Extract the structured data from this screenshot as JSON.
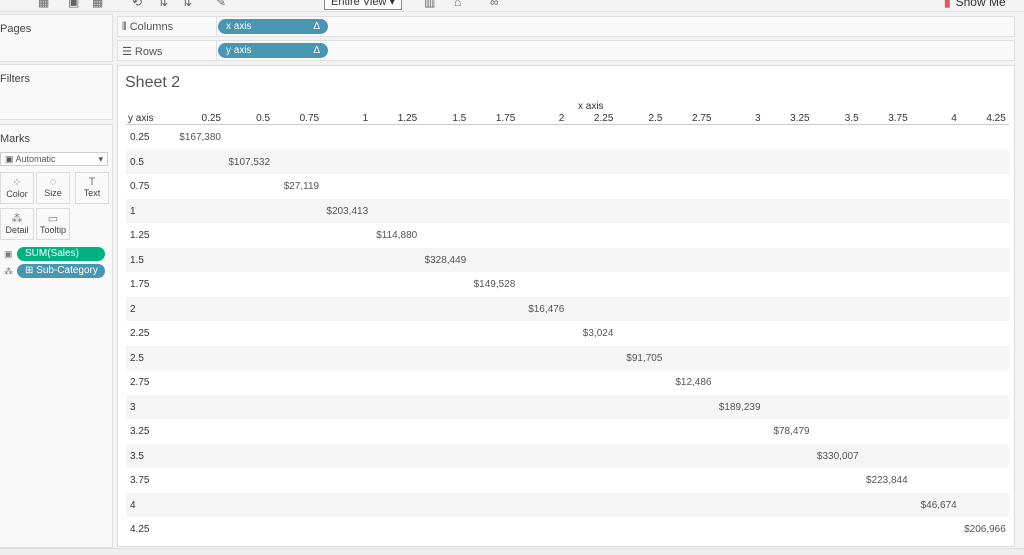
{
  "toolbar": {
    "view_select": "Entire View",
    "show_me": "Show Me"
  },
  "panels": {
    "pages": "Pages",
    "filters": "Filters",
    "marks": "Marks"
  },
  "marks": {
    "type": "Automatic",
    "buttons": [
      {
        "label": "Color",
        "icon": "color-icon"
      },
      {
        "label": "Size",
        "icon": "size-icon"
      },
      {
        "label": "Text",
        "icon": "text-icon"
      },
      {
        "label": "Detail",
        "icon": "detail-icon"
      },
      {
        "label": "Tooltip",
        "icon": "tooltip-icon"
      }
    ],
    "fields": [
      {
        "label": "SUM(Sales)",
        "color": "#00b180"
      },
      {
        "label": "⊞ Sub-Category",
        "color": "#4996b2"
      }
    ]
  },
  "shelves": {
    "columns": {
      "label": "Columns",
      "pill": "x axis",
      "delta": "Δ"
    },
    "rows": {
      "label": "Rows",
      "pill": "y axis",
      "delta": "Δ"
    }
  },
  "sheet": {
    "title": "Sheet 2",
    "x_header": "x axis",
    "y_header": "y axis",
    "columns": [
      "0.25",
      "0.5",
      "0.75",
      "1",
      "1.25",
      "1.5",
      "1.75",
      "2",
      "2.25",
      "2.5",
      "2.75",
      "3",
      "3.25",
      "3.5",
      "3.75",
      "4",
      "4.25"
    ],
    "rows": [
      {
        "label": "0.25",
        "value": "$167,380"
      },
      {
        "label": "0.5",
        "value": "$107,532"
      },
      {
        "label": "0.75",
        "value": "$27,119"
      },
      {
        "label": "1",
        "value": "$203,413"
      },
      {
        "label": "1.25",
        "value": "$114,880"
      },
      {
        "label": "1.5",
        "value": "$328,449"
      },
      {
        "label": "1.75",
        "value": "$149,528"
      },
      {
        "label": "2",
        "value": "$16,476"
      },
      {
        "label": "2.25",
        "value": "$3,024"
      },
      {
        "label": "2.5",
        "value": "$91,705"
      },
      {
        "label": "2.75",
        "value": "$12,486"
      },
      {
        "label": "3",
        "value": "$189,239"
      },
      {
        "label": "3.25",
        "value": "$78,479"
      },
      {
        "label": "3.5",
        "value": "$330,007"
      },
      {
        "label": "3.75",
        "value": "$223,844"
      },
      {
        "label": "4",
        "value": "$46,674"
      },
      {
        "label": "4.25",
        "value": "$206,966"
      }
    ]
  }
}
